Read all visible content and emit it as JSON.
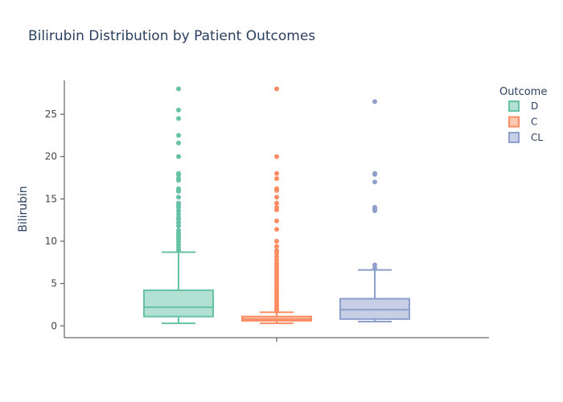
{
  "chart_data": {
    "type": "box",
    "title": "Bilirubin Distribution by Patient Outcomes",
    "xlabel": "",
    "ylabel": "Bilirubin",
    "ylim": [
      -1.4,
      29.0
    ],
    "yticks": [
      0,
      5,
      10,
      15,
      20,
      25
    ],
    "grid": false,
    "legend": {
      "title": "Outcome",
      "position": "top-right"
    },
    "series": [
      {
        "name": "D",
        "color": "#66c2a5",
        "q1": 1.1,
        "median": 2.2,
        "q3": 4.2,
        "whisker_low": 0.3,
        "whisker_high": 8.7,
        "outliers": [
          28.0,
          25.5,
          24.5,
          22.5,
          21.6,
          20.0,
          18.0,
          17.8,
          17.4,
          17.2,
          16.2,
          16.0,
          15.9,
          15.2,
          14.5,
          14.2,
          14.0,
          13.6,
          13.2,
          12.8,
          12.6,
          12.2,
          11.8,
          11.3,
          11.0,
          10.8,
          10.5,
          10.2,
          9.9,
          9.6,
          9.2,
          8.9
        ]
      },
      {
        "name": "C",
        "color": "#fc8d62",
        "q1": 0.6,
        "median": 0.8,
        "q3": 1.1,
        "whisker_low": 0.3,
        "whisker_high": 1.6,
        "outliers": [
          28.0,
          20.0,
          18.0,
          17.4,
          16.2,
          16.0,
          15.2,
          14.5,
          14.0,
          13.7,
          12.4,
          11.4,
          10.0,
          9.4,
          8.9,
          8.6,
          8.2,
          7.8,
          7.4,
          7.1,
          6.8,
          6.5,
          6.2,
          5.9,
          5.6,
          5.3,
          5.0,
          4.7,
          4.4,
          4.1,
          3.8,
          3.5,
          3.2,
          2.9,
          2.6,
          2.3,
          2.1,
          1.9,
          1.7
        ]
      },
      {
        "name": "CL",
        "color": "#8da0cb",
        "q1": 0.8,
        "median": 1.9,
        "q3": 3.2,
        "whisker_low": 0.5,
        "whisker_high": 6.6,
        "outliers": [
          26.5,
          18.0,
          17.9,
          17.0,
          14.0,
          13.8,
          13.6,
          7.2,
          6.8
        ]
      }
    ]
  }
}
